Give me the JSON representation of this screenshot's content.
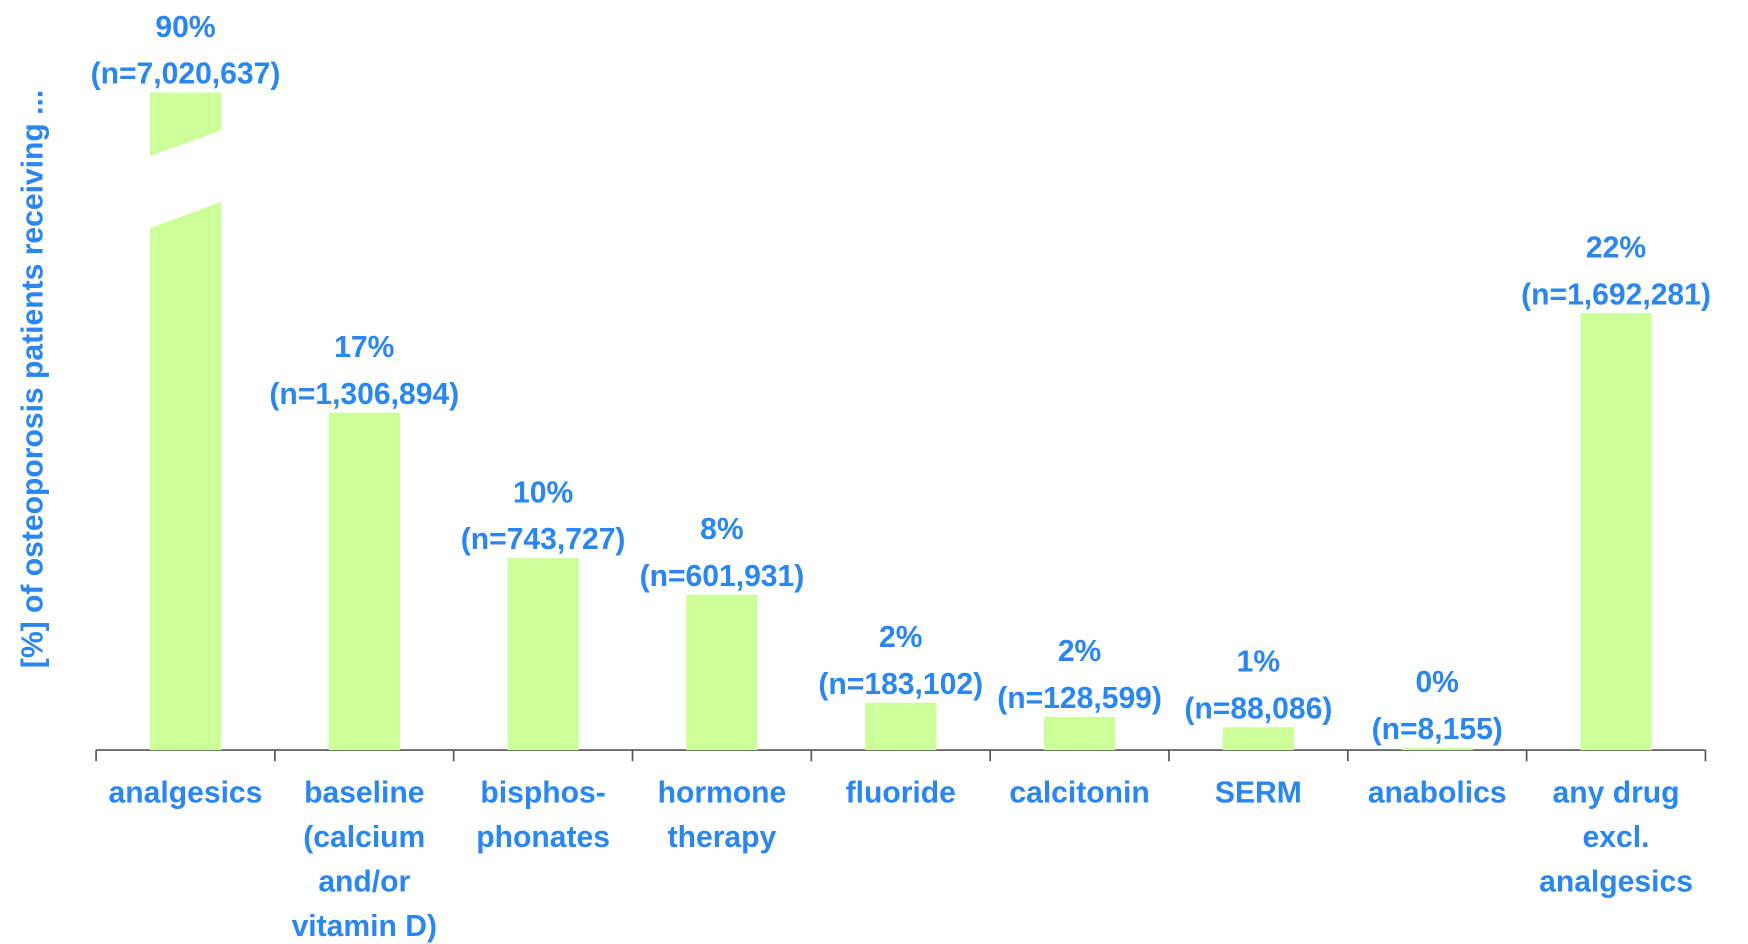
{
  "chart_data": {
    "type": "bar",
    "y_label": "[%] of osteoporosis patients receiving ...",
    "categories": [
      "analgesics",
      "baseline\n(calcium\nand/or\nvitamin D)",
      "bisphos-\nphonates",
      "hormone\ntherapy",
      "fluoride",
      "calcitonin",
      "SERM",
      "anabolics",
      "any drug\nexcl.\nanalgesics"
    ],
    "values": [
      7020637,
      1306894,
      743727,
      601931,
      183102,
      128599,
      88086,
      8155,
      1692281
    ],
    "value_labels": [
      "(n=7,020,637)",
      "(n=1,306,894)",
      "(n=743,727)",
      "(n=601,931)",
      "(n=183,102)",
      "(n=128,599)",
      "(n=88,086)",
      "(n=8,155)",
      "(n=1,692,281)"
    ],
    "percent_labels": [
      "90%",
      "17%",
      "10%",
      "8%",
      "2%",
      "2%",
      "1%",
      "0%",
      "22%"
    ],
    "color": "#ccff99",
    "text_color": "#2a86f0",
    "axis_break": true
  }
}
